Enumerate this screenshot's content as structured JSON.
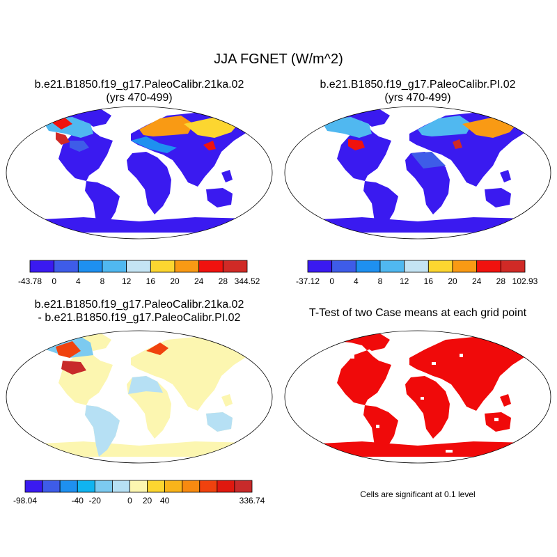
{
  "figure": {
    "title": "JJA FGNET (W/m^2)"
  },
  "panels": [
    {
      "id": "case1",
      "title_lines": [
        "b.e21.B1850.f19_g17.PaleoCalibr.21ka.02",
        "(yrs 470-499)"
      ],
      "colorbar": {
        "colors": [
          "#3a1af0",
          "#3e5ce8",
          "#1e90f0",
          "#50b8f0",
          "#c4e4f4",
          "#fcd630",
          "#f99a14",
          "#f0120e",
          "#d02a26"
        ],
        "labels": [
          "-43.78",
          "0",
          "4",
          "8",
          "12",
          "16",
          "20",
          "24",
          "28",
          "344.52"
        ]
      }
    },
    {
      "id": "case2",
      "title_lines": [
        "b.e21.B1850.f19_g17.PaleoCalibr.PI.02",
        "(yrs 470-499)"
      ],
      "colorbar": {
        "colors": [
          "#3a1af0",
          "#3e5ce8",
          "#1e90f0",
          "#50b8f0",
          "#c4e4f4",
          "#fcd630",
          "#f99a14",
          "#f0120e",
          "#d02a26"
        ],
        "labels": [
          "-37.12",
          "0",
          "4",
          "8",
          "12",
          "16",
          "20",
          "24",
          "28",
          "102.93"
        ]
      }
    },
    {
      "id": "diff",
      "title_lines": [
        "b.e21.B1850.f19_g17.PaleoCalibr.21ka.02",
        "- b.e21.B1850.f19_g17.PaleoCalibr.PI.02"
      ],
      "colorbar": {
        "colors": [
          "#3a1af0",
          "#3e5ce8",
          "#1e90f0",
          "#10b4f0",
          "#7ccaf0",
          "#b6e0f4",
          "#fcf6b0",
          "#fcd630",
          "#f9b41a",
          "#f78a10",
          "#f0420e",
          "#e0180f",
          "#c82a2a"
        ],
        "labels": [
          "-98.04",
          "",
          "-40",
          "-20",
          "0",
          "20",
          "40",
          "",
          "336.74"
        ]
      }
    },
    {
      "id": "ttest",
      "title_lines": [
        "T-Test of two Case means at each grid point"
      ],
      "note": "Cells are significant at 0.1 level"
    }
  ]
}
